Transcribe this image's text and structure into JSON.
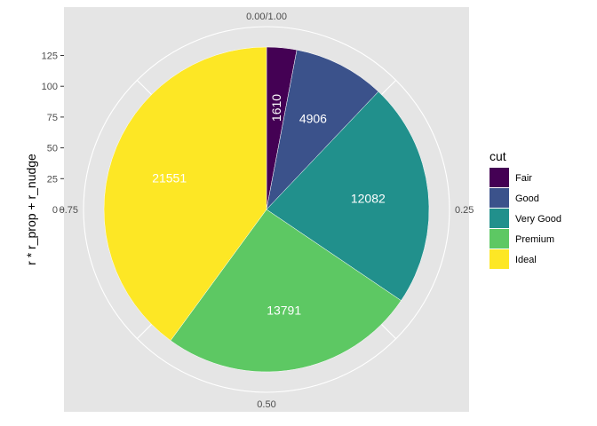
{
  "chart_data": {
    "type": "pie",
    "ylabel": "r * r_prop + r_nudge",
    "categories": [
      "Fair",
      "Good",
      "Very Good",
      "Premium",
      "Ideal"
    ],
    "values": [
      1610,
      4906,
      12082,
      13791,
      21551
    ],
    "colors": [
      "#440154",
      "#3B528B",
      "#21908C",
      "#5DC863",
      "#FDE725"
    ],
    "label_color": "#ffffff",
    "y_ticks": [
      "0",
      "25",
      "50",
      "75",
      "100",
      "125"
    ],
    "angle_ticks": [
      {
        "value": 0.0,
        "label": "0.00/1.00"
      },
      {
        "value": 0.25,
        "label": "0.25"
      },
      {
        "value": 0.5,
        "label": "0.50"
      },
      {
        "value": 0.75,
        "label": "0.75"
      }
    ],
    "legend": {
      "title": "cut",
      "position": "right"
    },
    "panel_background": "#E5E5E5",
    "grid": true
  }
}
